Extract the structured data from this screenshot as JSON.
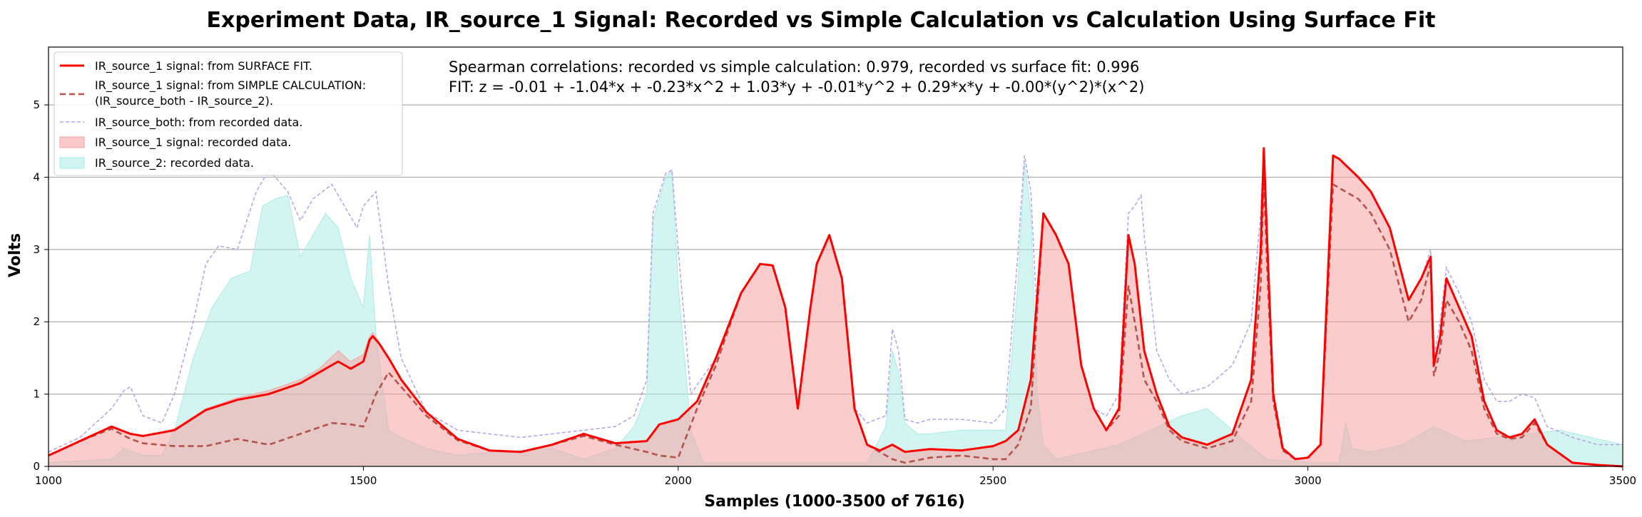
{
  "chart_data": {
    "type": "area",
    "title": "Experiment Data, IR_source_1 Signal: Recorded vs Simple Calculation vs Calculation Using Surface Fit",
    "xlabel": "Samples (1000-3500 of 7616)",
    "ylabel": "Volts",
    "xlim": [
      1000,
      3500
    ],
    "ylim": [
      0,
      5.8
    ],
    "xticks": [
      "1000",
      "1500",
      "2000",
      "2500",
      "3000",
      "3500"
    ],
    "yticks": [
      "0",
      "1",
      "2",
      "3",
      "4",
      "5"
    ],
    "grid": "horizontal",
    "legend_position": "top-left",
    "annotations": [
      "Spearman correlations: recorded vs simple calculation: 0.979, recorded vs surface fit: 0.996",
      "FIT: z = -0.01 + -1.04*x + -0.23*x^2 + 1.03*y + -0.01*y^2 + 0.29*x*y + -0.00*(y^2)*(x^2)"
    ],
    "colors": {
      "surface_fit": "#ff0000",
      "simple_calc": "#b5524c",
      "source_both": "#b9a6e8",
      "source1_fill": "#f5a3a3",
      "source2_fill": "#a8ebe6"
    },
    "series": [
      {
        "name": "IR_source_1 signal: from SURFACE FIT.",
        "style": "line",
        "x": [
          1000,
          1050,
          1100,
          1130,
          1150,
          1200,
          1250,
          1300,
          1350,
          1400,
          1430,
          1460,
          1480,
          1500,
          1510,
          1515,
          1525,
          1540,
          1560,
          1600,
          1650,
          1700,
          1750,
          1800,
          1850,
          1900,
          1950,
          1970,
          2000,
          2030,
          2060,
          2100,
          2130,
          2150,
          2170,
          2190,
          2210,
          2220,
          2240,
          2260,
          2280,
          2300,
          2320,
          2340,
          2360,
          2400,
          2450,
          2500,
          2520,
          2540,
          2560,
          2580,
          2600,
          2620,
          2640,
          2660,
          2680,
          2700,
          2715,
          2725,
          2740,
          2760,
          2780,
          2800,
          2840,
          2880,
          2910,
          2925,
          2930,
          2935,
          2945,
          2960,
          2980,
          3000,
          3020,
          3040,
          3050,
          3080,
          3100,
          3130,
          3160,
          3180,
          3195,
          3200,
          3210,
          3220,
          3240,
          3260,
          3280,
          3300,
          3320,
          3340,
          3360,
          3380,
          3420,
          3460,
          3500
        ],
        "y": [
          0.15,
          0.35,
          0.55,
          0.45,
          0.42,
          0.5,
          0.78,
          0.92,
          1.0,
          1.15,
          1.3,
          1.45,
          1.35,
          1.45,
          1.75,
          1.8,
          1.7,
          1.5,
          1.2,
          0.75,
          0.38,
          0.22,
          0.2,
          0.3,
          0.45,
          0.32,
          0.35,
          0.58,
          0.65,
          0.9,
          1.5,
          2.4,
          2.8,
          2.78,
          2.2,
          0.8,
          2.2,
          2.8,
          3.2,
          2.6,
          0.8,
          0.3,
          0.22,
          0.3,
          0.2,
          0.24,
          0.22,
          0.28,
          0.35,
          0.5,
          1.2,
          3.5,
          3.2,
          2.8,
          1.4,
          0.8,
          0.5,
          0.8,
          3.2,
          2.8,
          1.6,
          1.0,
          0.55,
          0.4,
          0.3,
          0.45,
          1.2,
          3.0,
          4.4,
          3.2,
          1.0,
          0.25,
          0.1,
          0.12,
          0.3,
          4.3,
          4.25,
          4.0,
          3.8,
          3.3,
          2.3,
          2.6,
          2.9,
          1.4,
          1.8,
          2.6,
          2.2,
          1.8,
          0.9,
          0.5,
          0.4,
          0.45,
          0.65,
          0.3,
          0.05,
          0.02,
          0.0
        ]
      },
      {
        "name": "IR_source_1 signal: from SIMPLE CALCULATION: (IR_source_both - IR_source_2).",
        "style": "dashed",
        "x": [
          1000,
          1050,
          1100,
          1130,
          1150,
          1200,
          1250,
          1300,
          1350,
          1400,
          1450,
          1480,
          1500,
          1520,
          1540,
          1560,
          1600,
          1650,
          1700,
          1750,
          1800,
          1850,
          1900,
          1950,
          1970,
          2000,
          2030,
          2060,
          2100,
          2130,
          2150,
          2170,
          2190,
          2210,
          2220,
          2240,
          2260,
          2280,
          2300,
          2320,
          2340,
          2360,
          2400,
          2450,
          2500,
          2520,
          2540,
          2560,
          2580,
          2600,
          2620,
          2640,
          2660,
          2680,
          2700,
          2715,
          2725,
          2740,
          2760,
          2780,
          2800,
          2840,
          2880,
          2910,
          2925,
          2930,
          2935,
          2945,
          2960,
          2980,
          3000,
          3020,
          3040,
          3050,
          3080,
          3100,
          3130,
          3160,
          3180,
          3195,
          3200,
          3210,
          3220,
          3240,
          3260,
          3280,
          3300,
          3320,
          3340,
          3360,
          3380,
          3420,
          3460,
          3500
        ],
        "y": [
          0.15,
          0.35,
          0.52,
          0.38,
          0.32,
          0.28,
          0.28,
          0.38,
          0.3,
          0.45,
          0.6,
          0.58,
          0.55,
          1.0,
          1.3,
          1.1,
          0.7,
          0.36,
          0.22,
          0.2,
          0.3,
          0.42,
          0.3,
          0.2,
          0.15,
          0.12,
          0.8,
          1.4,
          2.4,
          2.8,
          2.78,
          2.2,
          0.8,
          2.2,
          2.8,
          3.2,
          2.6,
          0.8,
          0.3,
          0.2,
          0.1,
          0.05,
          0.12,
          0.15,
          0.1,
          0.1,
          0.3,
          0.8,
          3.5,
          3.2,
          2.8,
          1.4,
          0.8,
          0.5,
          0.7,
          2.5,
          2.0,
          1.2,
          0.9,
          0.5,
          0.35,
          0.25,
          0.35,
          0.9,
          2.5,
          4.0,
          2.8,
          0.9,
          0.22,
          0.1,
          0.12,
          0.3,
          3.9,
          3.85,
          3.7,
          3.5,
          3.0,
          2.0,
          2.3,
          2.8,
          1.25,
          1.6,
          2.3,
          2.0,
          1.6,
          0.8,
          0.45,
          0.38,
          0.4,
          0.6,
          0.3,
          0.05,
          0.02,
          0.0
        ]
      },
      {
        "name": "IR_source_both: from recorded data.",
        "style": "dotted",
        "x": [
          1000,
          1050,
          1100,
          1120,
          1130,
          1150,
          1180,
          1200,
          1230,
          1250,
          1270,
          1300,
          1330,
          1350,
          1380,
          1400,
          1420,
          1450,
          1470,
          1490,
          1500,
          1520,
          1540,
          1560,
          1600,
          1650,
          1700,
          1750,
          1800,
          1850,
          1900,
          1930,
          1950,
          1960,
          1980,
          1990,
          2000,
          2020,
          2060,
          2100,
          2130,
          2150,
          2170,
          2190,
          2210,
          2220,
          2240,
          2260,
          2280,
          2300,
          2330,
          2340,
          2350,
          2360,
          2380,
          2400,
          2450,
          2500,
          2520,
          2540,
          2550,
          2560,
          2570,
          2580,
          2600,
          2620,
          2640,
          2660,
          2680,
          2700,
          2715,
          2725,
          2735,
          2740,
          2760,
          2780,
          2800,
          2840,
          2880,
          2910,
          2925,
          2930,
          2935,
          2945,
          2960,
          2980,
          3000,
          3020,
          3040,
          3050,
          3080,
          3100,
          3130,
          3160,
          3180,
          3195,
          3200,
          3210,
          3220,
          3240,
          3260,
          3280,
          3300,
          3320,
          3340,
          3360,
          3380,
          3420,
          3460,
          3500
        ],
        "y": [
          0.2,
          0.4,
          0.8,
          1.05,
          1.1,
          0.7,
          0.6,
          1.0,
          2.0,
          2.8,
          3.05,
          3.0,
          3.8,
          4.1,
          3.8,
          3.4,
          3.7,
          3.9,
          3.6,
          3.3,
          3.6,
          3.8,
          2.5,
          1.5,
          0.75,
          0.5,
          0.45,
          0.4,
          0.45,
          0.5,
          0.55,
          0.7,
          1.2,
          3.5,
          4.05,
          4.1,
          3.0,
          1.0,
          1.5,
          2.4,
          2.8,
          2.78,
          2.2,
          0.8,
          2.2,
          2.8,
          3.2,
          2.6,
          0.8,
          0.6,
          0.7,
          1.9,
          1.6,
          0.65,
          0.6,
          0.65,
          0.65,
          0.6,
          0.8,
          3.0,
          4.3,
          3.8,
          2.0,
          3.5,
          3.2,
          2.8,
          1.4,
          0.8,
          0.7,
          1.0,
          3.5,
          3.6,
          3.75,
          3.2,
          1.6,
          1.2,
          1.0,
          1.1,
          1.4,
          2.0,
          3.5,
          4.4,
          3.2,
          1.0,
          0.25,
          0.1,
          0.12,
          0.3,
          4.3,
          4.25,
          4.0,
          3.8,
          3.3,
          2.3,
          2.6,
          3.0,
          1.5,
          2.0,
          2.75,
          2.4,
          2.0,
          1.2,
          0.9,
          0.9,
          1.0,
          0.95,
          0.55,
          0.4,
          0.3,
          0.3
        ]
      },
      {
        "name": "IR_source_1 signal: recorded data.",
        "style": "fill",
        "x": [
          1000,
          1050,
          1100,
          1130,
          1150,
          1200,
          1250,
          1300,
          1350,
          1400,
          1430,
          1460,
          1480,
          1500,
          1510,
          1515,
          1525,
          1540,
          1560,
          1600,
          1650,
          1700,
          1750,
          1800,
          1850,
          1900,
          1950,
          1970,
          2000,
          2030,
          2060,
          2100,
          2130,
          2150,
          2170,
          2190,
          2210,
          2220,
          2240,
          2260,
          2280,
          2300,
          2320,
          2340,
          2360,
          2400,
          2450,
          2500,
          2520,
          2540,
          2560,
          2580,
          2600,
          2620,
          2640,
          2660,
          2680,
          2700,
          2715,
          2725,
          2740,
          2760,
          2780,
          2800,
          2840,
          2880,
          2910,
          2925,
          2930,
          2935,
          2945,
          2960,
          2980,
          3000,
          3020,
          3040,
          3050,
          3080,
          3100,
          3130,
          3160,
          3180,
          3195,
          3200,
          3210,
          3220,
          3240,
          3260,
          3280,
          3300,
          3320,
          3340,
          3360,
          3380,
          3420,
          3460,
          3500
        ],
        "y": [
          0.15,
          0.35,
          0.55,
          0.45,
          0.42,
          0.52,
          0.8,
          0.95,
          1.05,
          1.2,
          1.35,
          1.6,
          1.45,
          1.55,
          1.8,
          1.85,
          1.72,
          1.5,
          1.2,
          0.75,
          0.38,
          0.22,
          0.2,
          0.3,
          0.45,
          0.32,
          0.35,
          0.58,
          0.65,
          0.9,
          1.5,
          2.4,
          2.8,
          2.78,
          2.2,
          0.8,
          2.2,
          2.8,
          3.2,
          2.6,
          0.8,
          0.3,
          0.22,
          0.3,
          0.2,
          0.24,
          0.22,
          0.28,
          0.35,
          0.5,
          1.2,
          3.5,
          3.2,
          2.8,
          1.4,
          0.8,
          0.5,
          0.8,
          3.2,
          2.8,
          1.6,
          1.0,
          0.55,
          0.4,
          0.3,
          0.45,
          1.2,
          3.0,
          4.4,
          3.2,
          1.0,
          0.25,
          0.1,
          0.12,
          0.3,
          4.3,
          4.25,
          4.0,
          3.8,
          3.3,
          2.3,
          2.6,
          2.9,
          1.4,
          1.8,
          2.6,
          2.2,
          1.8,
          0.9,
          0.5,
          0.4,
          0.45,
          0.65,
          0.3,
          0.05,
          0.02,
          0.0
        ]
      },
      {
        "name": "IR_source_2: recorded data.",
        "style": "fill",
        "x": [
          1000,
          1100,
          1120,
          1150,
          1180,
          1200,
          1230,
          1260,
          1290,
          1320,
          1340,
          1360,
          1380,
          1400,
          1420,
          1440,
          1460,
          1480,
          1500,
          1510,
          1520,
          1540,
          1560,
          1600,
          1650,
          1700,
          1750,
          1800,
          1850,
          1900,
          1930,
          1950,
          1960,
          1980,
          1990,
          2000,
          2020,
          2040,
          2100,
          2200,
          2300,
          2330,
          2340,
          2350,
          2360,
          2380,
          2400,
          2450,
          2500,
          2520,
          2540,
          2550,
          2560,
          2570,
          2580,
          2600,
          2700,
          2800,
          2840,
          2880,
          2920,
          2935,
          3000,
          3050,
          3060,
          3070,
          3100,
          3150,
          3200,
          3250,
          3300,
          3400,
          3500
        ],
        "y": [
          0.05,
          0.1,
          0.25,
          0.15,
          0.15,
          0.5,
          1.5,
          2.2,
          2.6,
          2.7,
          3.6,
          3.7,
          3.75,
          2.9,
          3.2,
          3.5,
          3.3,
          2.6,
          2.2,
          3.2,
          1.8,
          0.5,
          0.4,
          0.25,
          0.15,
          0.2,
          0.22,
          0.25,
          0.1,
          0.25,
          0.55,
          1.0,
          3.4,
          4.0,
          4.1,
          2.5,
          0.5,
          0.05,
          0.05,
          0.05,
          0.05,
          0.55,
          1.6,
          1.3,
          0.6,
          0.45,
          0.45,
          0.5,
          0.5,
          0.5,
          2.6,
          4.2,
          3.5,
          1.0,
          0.3,
          0.1,
          0.3,
          0.7,
          0.8,
          0.5,
          0.2,
          0.1,
          0.05,
          0.05,
          0.6,
          0.25,
          0.2,
          0.3,
          0.55,
          0.35,
          0.4,
          0.5,
          0.3
        ]
      }
    ]
  }
}
